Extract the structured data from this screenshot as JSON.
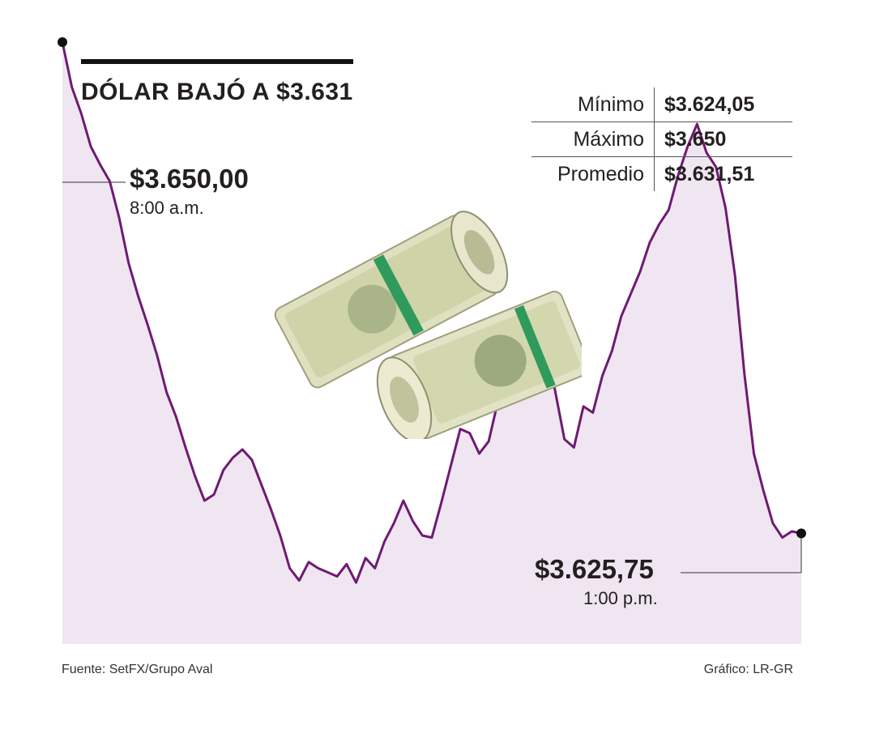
{
  "title": "DÓLAR BAJÓ A $3.631",
  "stats": [
    {
      "label": "Mínimo",
      "value": "$3.624,05"
    },
    {
      "label": "Máximo",
      "value": "$3.650"
    },
    {
      "label": "Promedio",
      "value": "$3.631,51"
    }
  ],
  "callouts": {
    "open": {
      "value": "$3.650,00",
      "time": "8:00 a.m."
    },
    "close": {
      "value": "$3.625,75",
      "time": "1:00 p.m."
    }
  },
  "footer": {
    "source": "Fuente: SetFX/Grupo Aval",
    "credit": "Gráfico: LR-GR"
  },
  "colors": {
    "line": "#6f1a73",
    "area": "#f0e6f1"
  },
  "image": "rolled-dollar-bills",
  "chart_data": {
    "type": "area",
    "x_range": [
      "8:00 a.m.",
      "1:00 p.m."
    ],
    "ylim": [
      3620.6,
      3650.0
    ],
    "grid": false,
    "series": [
      {
        "values": [
          3650.0,
          3647.8,
          3646.5,
          3644.9,
          3644.0,
          3643.2,
          3641.4,
          3639.2,
          3637.6,
          3636.2,
          3634.7,
          3632.9,
          3631.7,
          3630.2,
          3628.8,
          3627.6,
          3627.9,
          3629.1,
          3629.7,
          3630.1,
          3629.6,
          3628.4,
          3627.2,
          3625.9,
          3624.3,
          3623.7,
          3624.6,
          3624.3,
          3624.1,
          3623.9,
          3624.5,
          3623.6,
          3624.8,
          3624.3,
          3625.6,
          3626.5,
          3627.6,
          3626.6,
          3625.9,
          3625.8,
          3627.5,
          3629.3,
          3631.1,
          3630.9,
          3629.9,
          3630.5,
          3632.5,
          3633.8,
          3634.3,
          3636.3,
          3636.8,
          3635.8,
          3633.0,
          3630.6,
          3630.2,
          3632.2,
          3631.9,
          3633.7,
          3634.9,
          3636.6,
          3637.7,
          3638.8,
          3640.2,
          3641.1,
          3641.8,
          3643.5,
          3644.9,
          3646.0,
          3644.6,
          3643.9,
          3641.9,
          3638.6,
          3633.8,
          3629.9,
          3628.1,
          3626.5,
          3625.8,
          3626.1,
          3626.0
        ]
      }
    ]
  }
}
